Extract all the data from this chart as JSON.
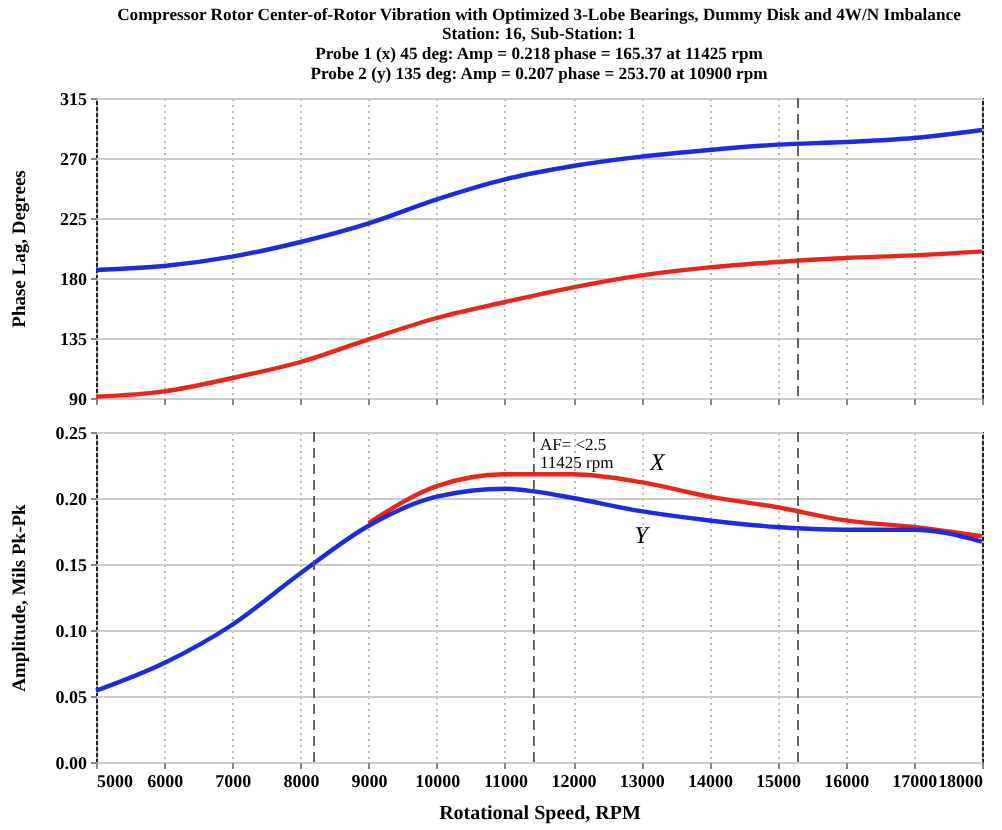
{
  "chart_data": [
    {
      "type": "line",
      "title": "Compressor Rotor Center-of-Rotor Vibration with Optimized 3-Lobe Bearings, Dummy Disk and 4W/N Imbalance",
      "subtitle": "Station: 16, Sub-Station: 1\nProbe 1 (x)  45 deg: Amp = 0.218     phase = 165.37 at 11425 rpm\nProbe 2 (y) 135 deg: Amp = 0.207     phase = 253.70 at 10900 rpm",
      "ylabel": "Phase Lag, Degrees",
      "x": [
        5000,
        6000,
        7000,
        8000,
        9000,
        10000,
        11000,
        12000,
        13000,
        14000,
        15000,
        16000,
        17000,
        18000
      ],
      "series": [
        {
          "color": "#e8261c",
          "values": [
            91,
            95,
            105,
            117,
            134,
            150,
            162,
            173,
            182,
            188,
            192,
            195,
            197,
            200
          ]
        },
        {
          "color": "#1c2be0",
          "values": [
            186,
            189,
            196,
            207,
            221,
            239,
            254,
            264,
            271,
            276,
            280,
            282,
            285,
            291
          ]
        }
      ],
      "xlim": [
        5000,
        18000
      ],
      "xticks": [
        5000,
        6000,
        7000,
        8000,
        9000,
        10000,
        11000,
        12000,
        13000,
        14000,
        15000,
        16000,
        17000,
        18000
      ],
      "ylim": [
        90,
        315
      ],
      "yticks": [
        90,
        135,
        180,
        225,
        270,
        315
      ],
      "tick_labels": "y",
      "grid": true,
      "ref_lines": [
        {
          "axis": "x",
          "value": 15300,
          "color": "#555555",
          "line_style": "dashed"
        }
      ]
    },
    {
      "type": "line",
      "xlabel": "Rotational Speed, RPM",
      "ylabel": "Amplitude, Mils Pk-Pk",
      "x": [
        5000,
        6000,
        7000,
        8000,
        9000,
        10000,
        11000,
        11425,
        12000,
        13000,
        14000,
        15000,
        16000,
        17000,
        18000
      ],
      "series": [
        {
          "name": "X",
          "color": "#e8261c",
          "values": [
            null,
            null,
            null,
            null,
            0.181,
            0.209,
            0.218,
            0.218,
            0.218,
            0.212,
            0.201,
            0.193,
            0.183,
            0.178,
            0.171
          ]
        },
        {
          "name": "Y",
          "color": "#1c2be0",
          "values": [
            0.054,
            0.075,
            0.104,
            0.143,
            0.179,
            0.201,
            0.207,
            0.205,
            0.2,
            0.19,
            0.183,
            0.178,
            0.176,
            0.176,
            0.167
          ]
        }
      ],
      "xlim": [
        5000,
        18000
      ],
      "xticks": [
        5000,
        6000,
        7000,
        8000,
        9000,
        10000,
        11000,
        12000,
        13000,
        14000,
        15000,
        16000,
        17000,
        18000
      ],
      "ylim": [
        0,
        0.25
      ],
      "yticks": [
        {
          "value": 0,
          "label": "0.00"
        },
        {
          "value": 0.05,
          "label": "0.05"
        },
        {
          "value": 0.1,
          "label": "0.10"
        },
        {
          "value": 0.15,
          "label": "0.15"
        },
        {
          "value": 0.2,
          "label": "0.20"
        },
        {
          "value": 0.25,
          "label": "0.25"
        }
      ],
      "grid": true,
      "ref_lines": [
        {
          "axis": "x",
          "value": 8200,
          "color": "#555555",
          "line_style": "dashed"
        },
        {
          "axis": "x",
          "value": 11425,
          "color": "#555555",
          "line_style": "dashed",
          "label": "AF= <2.5\n11425 rpm"
        },
        {
          "axis": "x",
          "value": 15300,
          "color": "#555555",
          "line_style": "dashed"
        }
      ]
    }
  ]
}
